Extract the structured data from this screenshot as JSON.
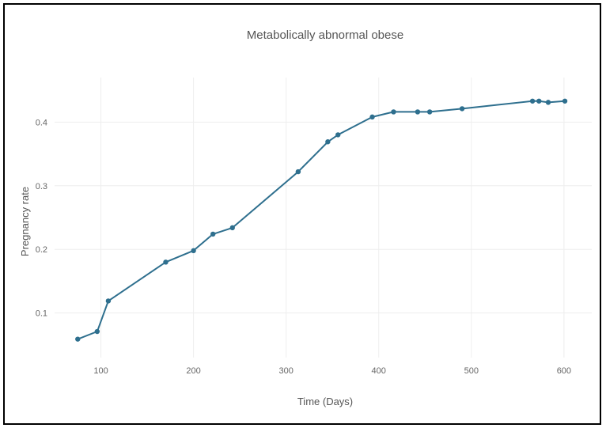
{
  "chart_data": {
    "type": "line",
    "title": "Metabolically  abnormal obese",
    "xlabel": "Time (Days)",
    "ylabel": "Pregnancy rate",
    "xlim": [
      50,
      630
    ],
    "ylim": [
      0.03,
      0.47
    ],
    "xticks": [
      100,
      200,
      300,
      400,
      500,
      600
    ],
    "xtick_labels": [
      "100",
      "200",
      "300",
      "400",
      "500",
      "600"
    ],
    "yticks": [
      0.1,
      0.2,
      0.3,
      0.4
    ],
    "ytick_labels": [
      "0.1",
      "0.2",
      "0.3",
      "0.4"
    ],
    "grid": true,
    "line_color": "#2e6f8e",
    "series": [
      {
        "x": [
          75,
          96,
          108,
          170,
          200,
          221,
          242,
          313,
          345,
          356,
          393,
          416,
          442,
          455,
          490,
          566,
          573,
          583,
          601
        ],
        "y": [
          0.059,
          0.071,
          0.119,
          0.18,
          0.198,
          0.224,
          0.234,
          0.322,
          0.369,
          0.38,
          0.408,
          0.416,
          0.416,
          0.416,
          0.421,
          0.433,
          0.433,
          0.431,
          0.433
        ]
      }
    ]
  }
}
